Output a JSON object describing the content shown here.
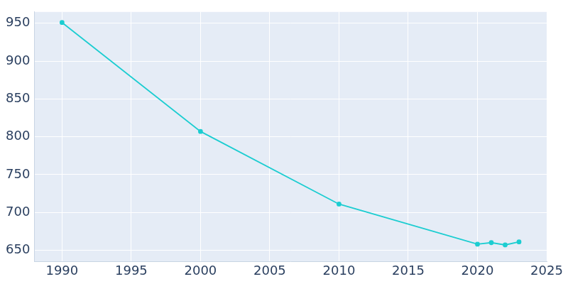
{
  "chart_data": {
    "type": "line",
    "x": [
      1990,
      2000,
      2010,
      2020,
      2021,
      2022,
      2023
    ],
    "values": [
      951,
      807,
      711,
      658,
      660,
      657,
      661
    ],
    "color": "#1ccdd1",
    "marker": "circle",
    "xlim": [
      1988,
      2025
    ],
    "xticks": [
      1990,
      1995,
      2000,
      2005,
      2010,
      2015,
      2020,
      2025
    ],
    "ylim": [
      635,
      965
    ],
    "yticks": [
      650,
      700,
      750,
      800,
      850,
      900,
      950
    ],
    "grid": true
  }
}
